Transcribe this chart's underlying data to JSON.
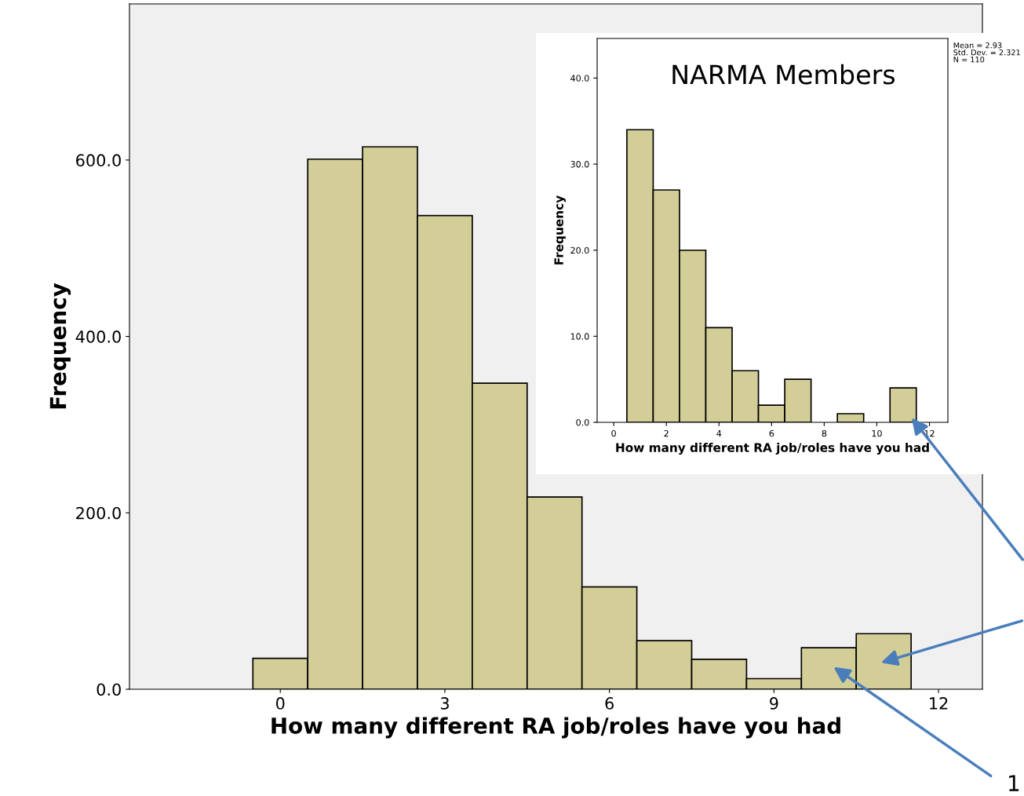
{
  "chart_data": [
    {
      "type": "histogram",
      "xlabel": "How many different RA job/roles have you had",
      "ylabel": "Frequency",
      "bins": [
        -0.5,
        0.5,
        1.5,
        2.5,
        3.5,
        4.5,
        5.5,
        6.5,
        7.5,
        8.5,
        9.5,
        10.5,
        11.5
      ],
      "values": [
        35,
        601,
        615,
        537,
        347,
        218,
        116,
        55,
        34,
        12,
        47,
        63
      ],
      "color": "#d3ce97",
      "xlim": [
        -2.75,
        12.8
      ],
      "ylim": [
        0,
        777
      ],
      "xticks": [
        0,
        3,
        6,
        9,
        12
      ],
      "yticks": [
        {
          "value": 0,
          "label": "0.0"
        },
        {
          "value": 200,
          "label": "200.0"
        },
        {
          "value": 400,
          "label": "400.0"
        },
        {
          "value": 600,
          "label": "600.0"
        }
      ],
      "grid": false,
      "annotations": [
        "1"
      ]
    },
    {
      "type": "histogram",
      "title": "NARMA Members",
      "xlabel": "How many different RA job/roles have you had",
      "ylabel": "Frequency",
      "bins": [
        0.5,
        1.5,
        2.5,
        3.5,
        4.5,
        5.5,
        6.5,
        7.5,
        8.5,
        9.5,
        10.5,
        11.5
      ],
      "values": [
        34,
        27,
        20,
        11,
        6,
        2,
        5,
        0,
        1,
        0,
        4
      ],
      "color": "#d3ce97",
      "xlim": [
        -0.63,
        12.7
      ],
      "ylim": [
        0,
        44.6
      ],
      "xticks": [
        0,
        2,
        4,
        6,
        8,
        10,
        12
      ],
      "yticks": [
        {
          "value": 0,
          "label": "0.0"
        },
        {
          "value": 10,
          "label": "10.0"
        },
        {
          "value": 20,
          "label": "20.0"
        },
        {
          "value": 30,
          "label": "30.0"
        },
        {
          "value": 40,
          "label": "40.0"
        }
      ],
      "grid": false,
      "annotations": [
        "Mean = 2.93\nStd. Dev. = 2.321\nN = 110"
      ]
    }
  ]
}
